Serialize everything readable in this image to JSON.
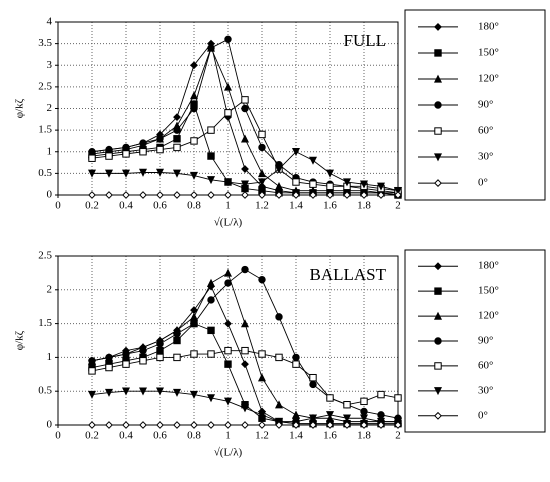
{
  "chart_data": [
    {
      "type": "line",
      "label": "FULL",
      "x_label": "√(L/λ)",
      "y_label": "φ/kζ",
      "x": [
        0.2,
        0.3,
        0.4,
        0.5,
        0.6,
        0.7,
        0.8,
        0.9,
        1.0,
        1.1,
        1.2,
        1.3,
        1.4,
        1.5,
        1.6,
        1.7,
        1.8,
        1.9,
        2.0
      ],
      "xlim": [
        0,
        2
      ],
      "xticks": [
        0,
        0.2,
        0.4,
        0.6,
        0.8,
        1,
        1.2,
        1.4,
        1.6,
        1.8,
        2
      ],
      "ylim": [
        0,
        4
      ],
      "yticks": [
        0,
        0.5,
        1,
        1.5,
        2,
        2.5,
        3,
        3.5,
        4
      ],
      "grid": true,
      "series": [
        {
          "name": "180°",
          "color": "#000",
          "marker": "diamond",
          "values": [
            1.0,
            1.05,
            1.1,
            1.2,
            1.4,
            1.8,
            3.0,
            3.5,
            1.8,
            0.6,
            0.2,
            0.1,
            0.05,
            0.05,
            0.05,
            0.05,
            0.05,
            0.05,
            0.0
          ]
        },
        {
          "name": "150°",
          "color": "#000",
          "marker": "square",
          "values": [
            0.9,
            0.95,
            1.0,
            1.05,
            1.1,
            1.3,
            2.1,
            0.9,
            0.3,
            0.15,
            0.1,
            0.05,
            0.05,
            0.05,
            0.05,
            0.05,
            0.05,
            0.05,
            0.0
          ]
        },
        {
          "name": "120°",
          "color": "#000",
          "marker": "triangle",
          "values": [
            0.95,
            1.0,
            1.05,
            1.15,
            1.3,
            1.6,
            2.3,
            3.4,
            2.5,
            1.3,
            0.5,
            0.2,
            0.1,
            0.1,
            0.1,
            0.1,
            0.1,
            0.05,
            0.05
          ]
        },
        {
          "name": "90°",
          "color": "#000",
          "marker": "circle",
          "values": [
            1.0,
            1.05,
            1.1,
            1.2,
            1.3,
            1.5,
            2.0,
            3.4,
            3.6,
            2.0,
            1.1,
            0.7,
            0.4,
            0.3,
            0.25,
            0.2,
            0.15,
            0.1,
            0.05
          ]
        },
        {
          "name": "60°",
          "color": "#000",
          "marker": "open-square",
          "values": [
            0.85,
            0.9,
            0.95,
            1.0,
            1.05,
            1.1,
            1.25,
            1.5,
            1.9,
            2.2,
            1.4,
            0.6,
            0.3,
            0.25,
            0.2,
            0.2,
            0.2,
            0.15,
            0.1
          ]
        },
        {
          "name": "30°",
          "color": "#000",
          "marker": "triangle-down",
          "values": [
            0.5,
            0.5,
            0.5,
            0.52,
            0.52,
            0.5,
            0.45,
            0.35,
            0.3,
            0.25,
            0.3,
            0.6,
            1.0,
            0.8,
            0.5,
            0.3,
            0.25,
            0.2,
            0.1
          ]
        },
        {
          "name": "0°",
          "color": "#000",
          "marker": "open-diamond",
          "values": [
            0,
            0,
            0,
            0,
            0,
            0,
            0,
            0,
            0,
            0,
            0,
            0,
            0,
            0,
            0,
            0,
            0,
            0,
            0
          ]
        }
      ]
    },
    {
      "type": "line",
      "label": "BALLAST",
      "x_label": "√(L/λ)",
      "y_label": "φ/kζ",
      "x": [
        0.2,
        0.3,
        0.4,
        0.5,
        0.6,
        0.7,
        0.8,
        0.9,
        1.0,
        1.1,
        1.2,
        1.3,
        1.4,
        1.5,
        1.6,
        1.7,
        1.8,
        1.9,
        2.0
      ],
      "xlim": [
        0,
        2
      ],
      "xticks": [
        0,
        0.2,
        0.4,
        0.6,
        0.8,
        1,
        1.2,
        1.4,
        1.6,
        1.8,
        2
      ],
      "ylim": [
        0,
        2.5
      ],
      "yticks": [
        0,
        0.5,
        1,
        1.5,
        2,
        2.5
      ],
      "grid": true,
      "series": [
        {
          "name": "180°",
          "color": "#000",
          "marker": "diamond",
          "values": [
            0.95,
            1.0,
            1.1,
            1.15,
            1.25,
            1.4,
            1.7,
            2.05,
            1.5,
            0.9,
            0.2,
            0.05,
            0.02,
            0.02,
            0.02,
            0.02,
            0.02,
            0.02,
            0.02
          ]
        },
        {
          "name": "150°",
          "color": "#000",
          "marker": "square",
          "values": [
            0.85,
            0.9,
            0.95,
            1.0,
            1.1,
            1.25,
            1.5,
            1.4,
            0.9,
            0.3,
            0.1,
            0.05,
            0.02,
            0.02,
            0.02,
            0.02,
            0.02,
            0.02,
            0.02
          ]
        },
        {
          "name": "120°",
          "color": "#000",
          "marker": "triangle",
          "values": [
            0.95,
            1.0,
            1.05,
            1.15,
            1.25,
            1.4,
            1.6,
            2.1,
            2.25,
            1.5,
            0.7,
            0.3,
            0.15,
            0.1,
            0.1,
            0.05,
            0.05,
            0.05,
            0.05
          ]
        },
        {
          "name": "90°",
          "color": "#000",
          "marker": "circle",
          "values": [
            0.95,
            1.0,
            1.05,
            1.1,
            1.2,
            1.35,
            1.5,
            1.85,
            2.1,
            2.3,
            2.15,
            1.6,
            1.0,
            0.6,
            0.4,
            0.3,
            0.2,
            0.15,
            0.1
          ]
        },
        {
          "name": "60°",
          "color": "#000",
          "marker": "open-square",
          "values": [
            0.8,
            0.85,
            0.9,
            0.95,
            1.0,
            1.0,
            1.05,
            1.05,
            1.1,
            1.1,
            1.05,
            1.0,
            0.9,
            0.7,
            0.4,
            0.3,
            0.35,
            0.45,
            0.4
          ]
        },
        {
          "name": "30°",
          "color": "#000",
          "marker": "triangle-down",
          "values": [
            0.45,
            0.48,
            0.5,
            0.5,
            0.5,
            0.48,
            0.45,
            0.4,
            0.35,
            0.25,
            0.15,
            0.05,
            0.05,
            0.1,
            0.15,
            0.1,
            0.1,
            0.05,
            0.05
          ]
        },
        {
          "name": "0°",
          "color": "#000",
          "marker": "open-diamond",
          "values": [
            0,
            0,
            0,
            0,
            0,
            0,
            0,
            0,
            0,
            0,
            0,
            0,
            0,
            0,
            0,
            0,
            0,
            0,
            0
          ]
        }
      ]
    }
  ]
}
